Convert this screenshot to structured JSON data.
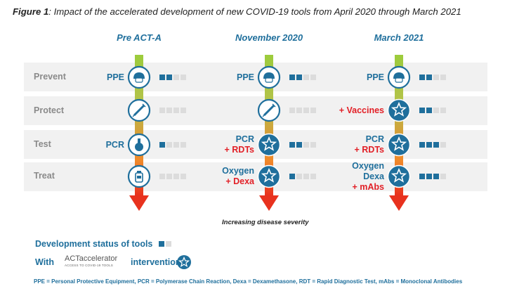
{
  "title": {
    "prefix": "Figure 1",
    "text": ": Impact of the accelerated development of new COVID-19 tools from April 2020 through March 2021"
  },
  "columns": [
    {
      "heading": "Pre ACT-A",
      "rows": [
        {
          "lines": [
            {
              "text": "PPE",
              "color": "blue"
            }
          ],
          "icon": "ppe-icon",
          "status": 2
        },
        {
          "lines": [],
          "icon": "syringe-icon",
          "status": 0
        },
        {
          "lines": [
            {
              "text": "PCR",
              "color": "blue"
            }
          ],
          "icon": "flask-icon",
          "status": 1
        },
        {
          "lines": [],
          "icon": "bottle-icon",
          "status": 0
        }
      ]
    },
    {
      "heading": "November 2020",
      "rows": [
        {
          "lines": [
            {
              "text": "PPE",
              "color": "blue"
            }
          ],
          "icon": "ppe-icon",
          "status": 2
        },
        {
          "lines": [],
          "icon": "syringe-icon",
          "status": 0
        },
        {
          "lines": [
            {
              "text": "PCR",
              "color": "blue"
            },
            {
              "text": "+ RDTs",
              "color": "red"
            }
          ],
          "icon": "star-icon",
          "status": 2
        },
        {
          "lines": [
            {
              "text": "Oxygen",
              "color": "blue"
            },
            {
              "text": "+ Dexa",
              "color": "red"
            }
          ],
          "icon": "star-icon",
          "status": 1
        }
      ]
    },
    {
      "heading": "March 2021",
      "rows": [
        {
          "lines": [
            {
              "text": "PPE",
              "color": "blue"
            }
          ],
          "icon": "ppe-icon",
          "status": 2
        },
        {
          "lines": [
            {
              "text": "+ Vaccines",
              "color": "red"
            }
          ],
          "icon": "star-icon",
          "status": 2
        },
        {
          "lines": [
            {
              "text": "PCR",
              "color": "blue"
            },
            {
              "text": "+ RDTs",
              "color": "red"
            }
          ],
          "icon": "star-icon",
          "status": 3
        },
        {
          "lines": [
            {
              "text": "Oxygen",
              "color": "blue"
            },
            {
              "text": "Dexa",
              "color": "blue"
            },
            {
              "text": "+ mAbs",
              "color": "red"
            }
          ],
          "icon": "star-icon",
          "status": 3
        }
      ]
    }
  ],
  "row_labels": [
    "Prevent",
    "Protect",
    "Test",
    "Treat"
  ],
  "status_max": 4,
  "severity_label": "Increasing disease severity",
  "legend": {
    "status_label": "Development status of tools",
    "with_label": "With",
    "brand_main": "ACTaccelerator",
    "brand_sub": "ACCESS TO COVID-19 TOOLS",
    "intervention_label": "intervention"
  },
  "footnote": "PPE = Personal Protective Equipment, PCR = Polymerase Chain Reaction, Dexa = Dexamethasone, RDT = Rapid Diagnostic Test, mAbs = Monoclonal Antibodies",
  "colors": {
    "blue": "#1f6f9c",
    "red": "#e21f26",
    "green": "#9ccc3c",
    "olive": "#c0b24a",
    "orange": "#f08a2a"
  }
}
